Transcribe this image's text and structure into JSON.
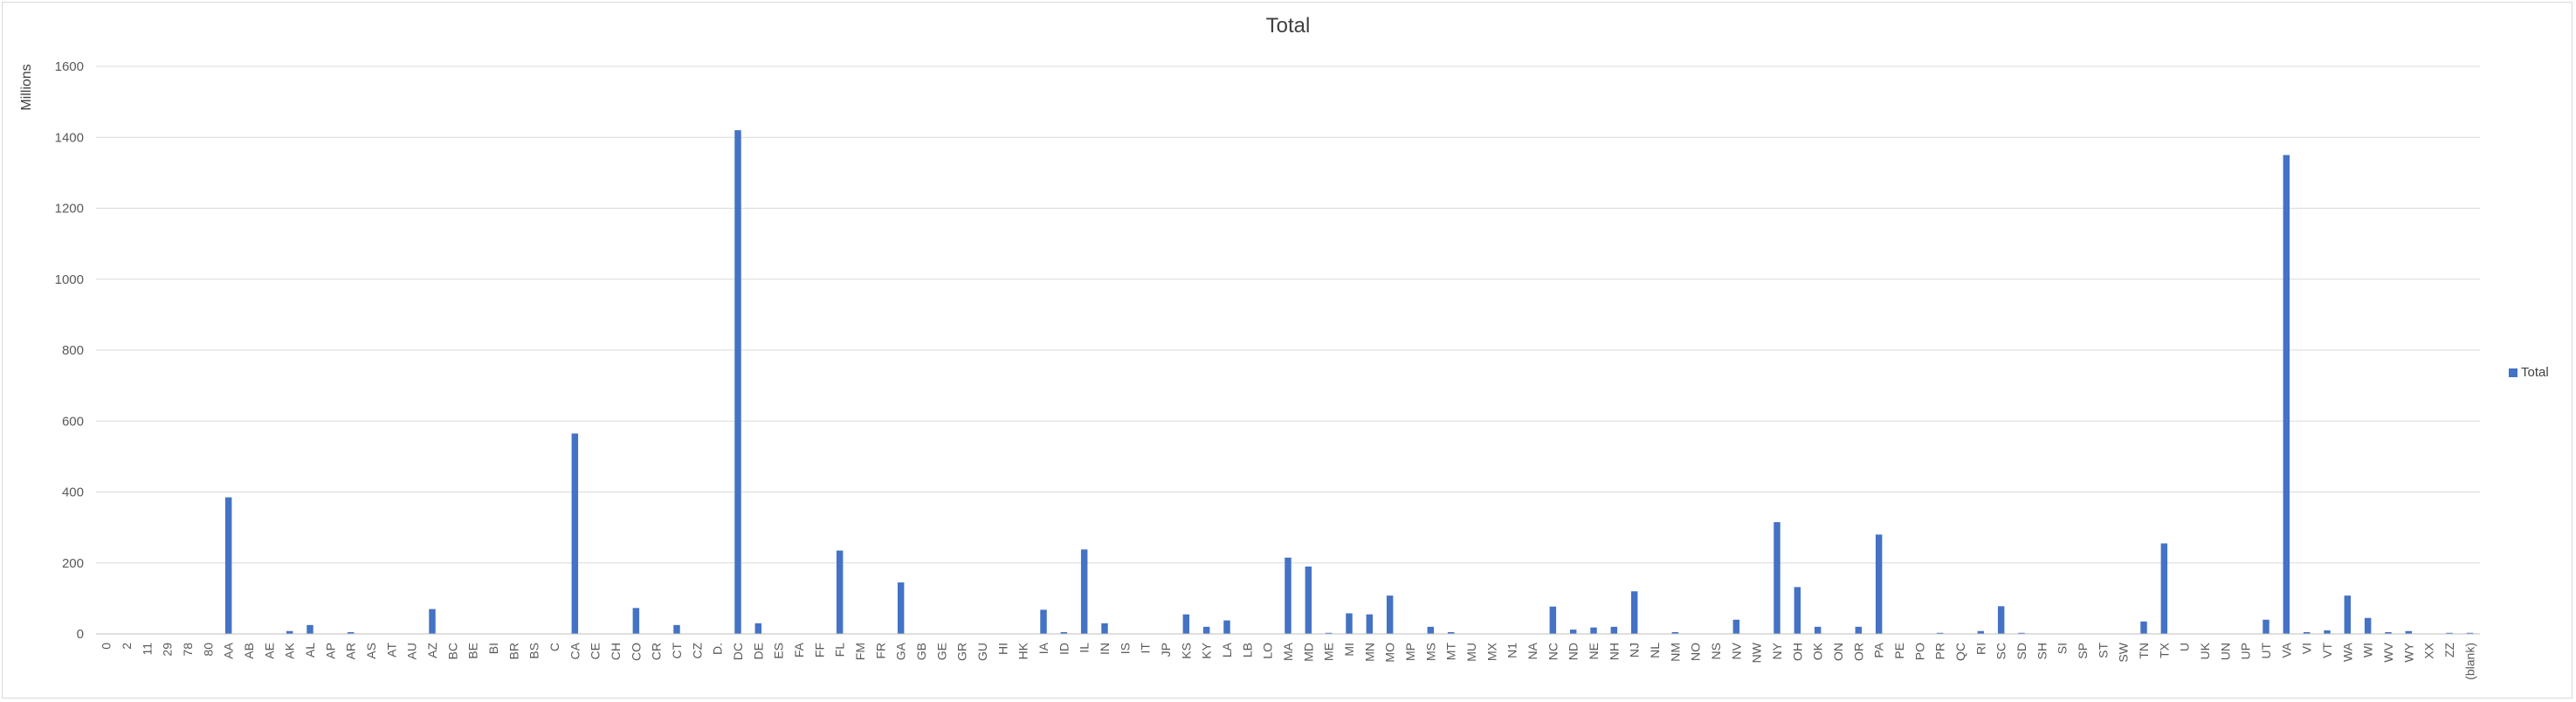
{
  "chart_data": {
    "type": "bar",
    "title": "Total",
    "xlabel": "",
    "ylabel": "Millions",
    "ylim": [
      0,
      1600
    ],
    "yticks": [
      0,
      200,
      400,
      600,
      800,
      1000,
      1200,
      1400,
      1600
    ],
    "grid": true,
    "legend_position": "right",
    "bar_color": "#4472C4",
    "categories": [
      "0",
      "2",
      "11",
      "29",
      "78",
      "80",
      "AA",
      "AB",
      "AE",
      "AK",
      "AL",
      "AP",
      "AR",
      "AS",
      "AT",
      "AU",
      "AZ",
      "BC",
      "BE",
      "BI",
      "BR",
      "BS",
      "C",
      "CA",
      "CE",
      "CH",
      "CO",
      "CR",
      "CT",
      "CZ",
      "D.",
      "DC",
      "DE",
      "ES",
      "FA",
      "FF",
      "FL",
      "FM",
      "FR",
      "GA",
      "GB",
      "GE",
      "GR",
      "GU",
      "HI",
      "HK",
      "IA",
      "ID",
      "IL",
      "IN",
      "IS",
      "IT",
      "JP",
      "KS",
      "KY",
      "LA",
      "LB",
      "LO",
      "MA",
      "MD",
      "ME",
      "MI",
      "MN",
      "MO",
      "MP",
      "MS",
      "MT",
      "MU",
      "MX",
      "N1",
      "NA",
      "NC",
      "ND",
      "NE",
      "NH",
      "NJ",
      "NL",
      "NM",
      "NO",
      "NS",
      "NV",
      "NW",
      "NY",
      "OH",
      "OK",
      "ON",
      "OR",
      "PA",
      "PE",
      "PO",
      "PR",
      "QC",
      "RI",
      "SC",
      "SD",
      "SH",
      "SI",
      "SP",
      "ST",
      "SW",
      "TN",
      "TX",
      "U",
      "UK",
      "UN",
      "UP",
      "UT",
      "VA",
      "VI",
      "VT",
      "WA",
      "WI",
      "WV",
      "WY",
      "XX",
      "ZZ",
      "(blank)"
    ],
    "series": [
      {
        "name": "Total",
        "values": [
          0,
          0,
          0,
          0,
          0,
          0,
          385,
          0,
          0,
          8,
          25,
          0,
          5,
          0,
          0,
          0,
          70,
          0,
          0,
          0,
          0,
          0,
          0,
          565,
          0,
          0,
          73,
          0,
          25,
          0,
          0,
          1420,
          30,
          0,
          0,
          0,
          235,
          0,
          0,
          145,
          0,
          0,
          0,
          0,
          0,
          0,
          68,
          5,
          238,
          30,
          0,
          0,
          0,
          55,
          20,
          38,
          0,
          0,
          215,
          190,
          3,
          58,
          55,
          108,
          0,
          20,
          5,
          0,
          0,
          0,
          0,
          77,
          12,
          18,
          20,
          120,
          0,
          5,
          0,
          0,
          40,
          0,
          315,
          132,
          20,
          0,
          20,
          280,
          0,
          0,
          3,
          0,
          8,
          78,
          3,
          0,
          0,
          0,
          0,
          0,
          35,
          255,
          0,
          0,
          0,
          0,
          40,
          1350,
          5,
          10,
          108,
          45,
          5,
          8,
          0,
          3,
          3
        ]
      }
    ]
  }
}
